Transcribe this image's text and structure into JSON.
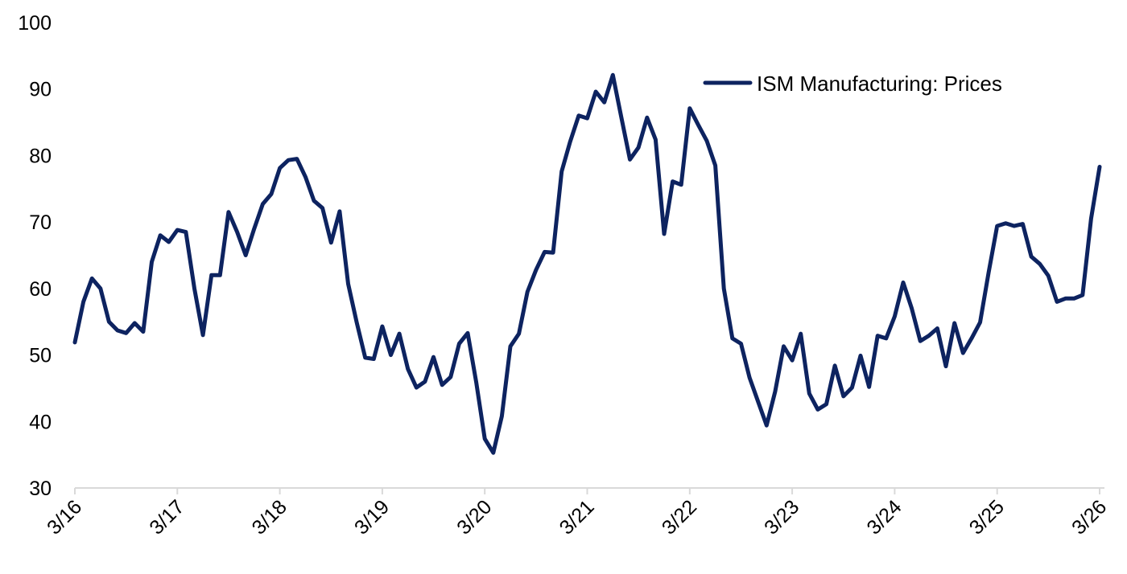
{
  "chart_data": {
    "type": "line",
    "title": "",
    "xlabel": "",
    "ylabel": "",
    "ylim": [
      30,
      100
    ],
    "yticks": [
      30,
      40,
      50,
      60,
      70,
      80,
      90,
      100
    ],
    "xtick_labels": [
      "3/16",
      "3/17",
      "3/18",
      "3/19",
      "3/20",
      "3/21",
      "3/22",
      "3/23",
      "3/24",
      "3/25",
      "3/26"
    ],
    "grid": false,
    "legend_position": "upper right",
    "frequency": "monthly",
    "x_start": "2016-03",
    "x_end": "2026-03",
    "series": [
      {
        "name": "ISM Manufacturing: Prices",
        "color": "#0d2360",
        "values": [
          51.9,
          58.0,
          61.5,
          60.0,
          55.0,
          53.7,
          53.3,
          54.8,
          53.5,
          64.0,
          68.0,
          67.0,
          68.8,
          68.5,
          60.0,
          53.0,
          62.0,
          62.0,
          71.5,
          68.5,
          65.0,
          69.0,
          72.7,
          74.2,
          78.1,
          79.3,
          79.5,
          76.8,
          73.2,
          72.1,
          66.9,
          71.6,
          60.7,
          54.9,
          49.6,
          49.4,
          54.3,
          50.0,
          53.2,
          47.9,
          45.1,
          46.0,
          49.7,
          45.5,
          46.7,
          51.7,
          53.3,
          45.9,
          37.4,
          35.3,
          40.8,
          51.3,
          53.2,
          59.5,
          62.8,
          65.5,
          65.4,
          77.6,
          82.1,
          86.0,
          85.6,
          89.6,
          88.0,
          92.1,
          85.7,
          79.4,
          81.2,
          85.7,
          82.4,
          68.2,
          76.1,
          75.6,
          87.1,
          84.6,
          82.2,
          78.5,
          60.0,
          52.5,
          51.7,
          46.6,
          43.0,
          39.4,
          44.5,
          51.3,
          49.2,
          53.2,
          44.2,
          41.8,
          42.6,
          48.4,
          43.8,
          45.1,
          49.9,
          45.2,
          52.9,
          52.5,
          55.8,
          60.9,
          57.0,
          52.1,
          52.9,
          54.0,
          48.3,
          54.8,
          50.3,
          52.5,
          54.9,
          62.4,
          69.4,
          69.8,
          69.4,
          69.7,
          64.8,
          63.7,
          61.9,
          58.0,
          58.5,
          58.5,
          59.0,
          70.5,
          78.3
        ]
      }
    ]
  },
  "legend": {
    "label": "ISM Manufacturing: Prices"
  },
  "style": {
    "line_color": "#0d2360",
    "axis_color": "#d9d9d9"
  }
}
